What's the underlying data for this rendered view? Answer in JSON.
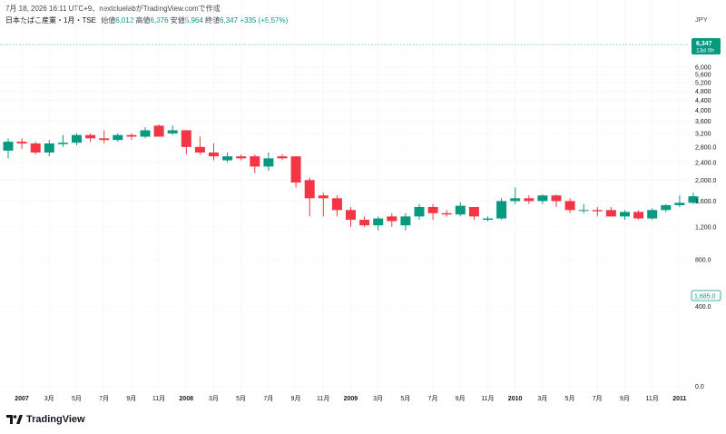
{
  "header": {
    "published": "7月 18, 2026 16:11 UTC+9、nextcluelabがTradingView.comで作成",
    "symbol": "日本たばこ産業・1月・TSE",
    "open_label": "始値",
    "open_value": "6,012",
    "high_label": "高値",
    "high_value": "6,376",
    "low_label": "安値",
    "low_value": "5,964",
    "close_label": "終値",
    "close_value": "6,347",
    "change": "+335 (+5.57%)",
    "currency": "JPY"
  },
  "price_tag": {
    "price": "6,347",
    "countdown": "13d 0h"
  },
  "last_tag": {
    "price": "1,685.0"
  },
  "brand": {
    "name": "TradingView"
  },
  "colors": {
    "up": "#089981",
    "down": "#f23645",
    "axis_text": "#131722",
    "grid": "#f3f4f6"
  },
  "chart_data": {
    "type": "candlestick",
    "y_axis": {
      "scale": "log",
      "ticks": [
        0,
        400,
        800,
        1200,
        1600,
        2000,
        2400,
        2800,
        3200,
        3600,
        4000,
        4400,
        4800,
        5200,
        5600,
        6000
      ],
      "tick_labels": [
        "0.0",
        "400.0",
        "800.0",
        "1,200.0",
        "1,600.0",
        "2,000.0",
        "2,400.0",
        "2,800.0",
        "3,200",
        "3,600",
        "4,000",
        "4,400",
        "4,800",
        "5,200",
        "5,600",
        "6,000"
      ]
    },
    "x_axis": {
      "tick_labels": [
        {
          "label": "2007",
          "index": 0
        },
        {
          "label": "3月",
          "index": 2
        },
        {
          "label": "5月",
          "index": 4
        },
        {
          "label": "7月",
          "index": 6
        },
        {
          "label": "9月",
          "index": 8
        },
        {
          "label": "11月",
          "index": 10
        },
        {
          "label": "2008",
          "index": 12
        },
        {
          "label": "3月",
          "index": 14
        },
        {
          "label": "5月",
          "index": 16
        },
        {
          "label": "7月",
          "index": 18
        },
        {
          "label": "9月",
          "index": 20
        },
        {
          "label": "11月",
          "index": 22
        },
        {
          "label": "2009",
          "index": 24
        },
        {
          "label": "3月",
          "index": 26
        },
        {
          "label": "5月",
          "index": 28
        },
        {
          "label": "7月",
          "index": 30
        },
        {
          "label": "9月",
          "index": 32
        },
        {
          "label": "11月",
          "index": 34
        },
        {
          "label": "2010",
          "index": 36
        },
        {
          "label": "3月",
          "index": 38
        },
        {
          "label": "5月",
          "index": 40
        },
        {
          "label": "7月",
          "index": 42
        },
        {
          "label": "9月",
          "index": 44
        },
        {
          "label": "11月",
          "index": 46
        },
        {
          "label": "2011",
          "index": 48
        }
      ]
    },
    "candles": [
      {
        "o": 2700,
        "h": 3050,
        "l": 2500,
        "c": 2950
      },
      {
        "o": 2950,
        "h": 3050,
        "l": 2750,
        "c": 2900
      },
      {
        "o": 2900,
        "h": 2950,
        "l": 2600,
        "c": 2650
      },
      {
        "o": 2650,
        "h": 3000,
        "l": 2550,
        "c": 2900
      },
      {
        "o": 2880,
        "h": 3150,
        "l": 2800,
        "c": 2920
      },
      {
        "o": 2920,
        "h": 3200,
        "l": 2850,
        "c": 3150
      },
      {
        "o": 3150,
        "h": 3200,
        "l": 2950,
        "c": 3050
      },
      {
        "o": 3050,
        "h": 3300,
        "l": 2900,
        "c": 3000
      },
      {
        "o": 3000,
        "h": 3200,
        "l": 2950,
        "c": 3150
      },
      {
        "o": 3150,
        "h": 3200,
        "l": 3000,
        "c": 3100
      },
      {
        "o": 3100,
        "h": 3400,
        "l": 3050,
        "c": 3300
      },
      {
        "o": 3450,
        "h": 3500,
        "l": 3100,
        "c": 3100
      },
      {
        "o": 3200,
        "h": 3450,
        "l": 3150,
        "c": 3300
      },
      {
        "o": 3300,
        "h": 3300,
        "l": 2600,
        "c": 2800
      },
      {
        "o": 2800,
        "h": 3100,
        "l": 2600,
        "c": 2650
      },
      {
        "o": 2650,
        "h": 2900,
        "l": 2450,
        "c": 2550
      },
      {
        "o": 2450,
        "h": 2650,
        "l": 2400,
        "c": 2550
      },
      {
        "o": 2550,
        "h": 2600,
        "l": 2450,
        "c": 2500
      },
      {
        "o": 2550,
        "h": 2600,
        "l": 2150,
        "c": 2300
      },
      {
        "o": 2300,
        "h": 2650,
        "l": 2200,
        "c": 2500
      },
      {
        "o": 2550,
        "h": 2600,
        "l": 2450,
        "c": 2500
      },
      {
        "o": 2550,
        "h": 2550,
        "l": 1850,
        "c": 1950
      },
      {
        "o": 2000,
        "h": 2050,
        "l": 1350,
        "c": 1650
      },
      {
        "o": 1700,
        "h": 1750,
        "l": 1350,
        "c": 1650
      },
      {
        "o": 1650,
        "h": 1700,
        "l": 1350,
        "c": 1450
      },
      {
        "o": 1450,
        "h": 1500,
        "l": 1200,
        "c": 1300
      },
      {
        "o": 1300,
        "h": 1350,
        "l": 1200,
        "c": 1220
      },
      {
        "o": 1220,
        "h": 1350,
        "l": 1150,
        "c": 1320
      },
      {
        "o": 1350,
        "h": 1400,
        "l": 1200,
        "c": 1280
      },
      {
        "o": 1220,
        "h": 1400,
        "l": 1150,
        "c": 1350
      },
      {
        "o": 1350,
        "h": 1550,
        "l": 1300,
        "c": 1500
      },
      {
        "o": 1500,
        "h": 1550,
        "l": 1300,
        "c": 1400
      },
      {
        "o": 1400,
        "h": 1450,
        "l": 1350,
        "c": 1380
      },
      {
        "o": 1380,
        "h": 1580,
        "l": 1350,
        "c": 1520
      },
      {
        "o": 1500,
        "h": 1500,
        "l": 1300,
        "c": 1350
      },
      {
        "o": 1300,
        "h": 1350,
        "l": 1280,
        "c": 1320
      },
      {
        "o": 1320,
        "h": 1650,
        "l": 1300,
        "c": 1600
      },
      {
        "o": 1600,
        "h": 1850,
        "l": 1550,
        "c": 1650
      },
      {
        "o": 1650,
        "h": 1700,
        "l": 1550,
        "c": 1600
      },
      {
        "o": 1600,
        "h": 1720,
        "l": 1550,
        "c": 1700
      },
      {
        "o": 1700,
        "h": 1720,
        "l": 1500,
        "c": 1600
      },
      {
        "o": 1600,
        "h": 1650,
        "l": 1400,
        "c": 1450
      },
      {
        "o": 1450,
        "h": 1550,
        "l": 1400,
        "c": 1450
      },
      {
        "o": 1450,
        "h": 1500,
        "l": 1350,
        "c": 1430
      },
      {
        "o": 1450,
        "h": 1500,
        "l": 1350,
        "c": 1350
      },
      {
        "o": 1350,
        "h": 1450,
        "l": 1300,
        "c": 1420
      },
      {
        "o": 1420,
        "h": 1450,
        "l": 1300,
        "c": 1320
      },
      {
        "o": 1320,
        "h": 1480,
        "l": 1300,
        "c": 1450
      },
      {
        "o": 1450,
        "h": 1550,
        "l": 1420,
        "c": 1530
      },
      {
        "o": 1530,
        "h": 1700,
        "l": 1500,
        "c": 1570
      },
      {
        "o": 1570,
        "h": 1750,
        "l": 1550,
        "c": 1685
      }
    ]
  }
}
